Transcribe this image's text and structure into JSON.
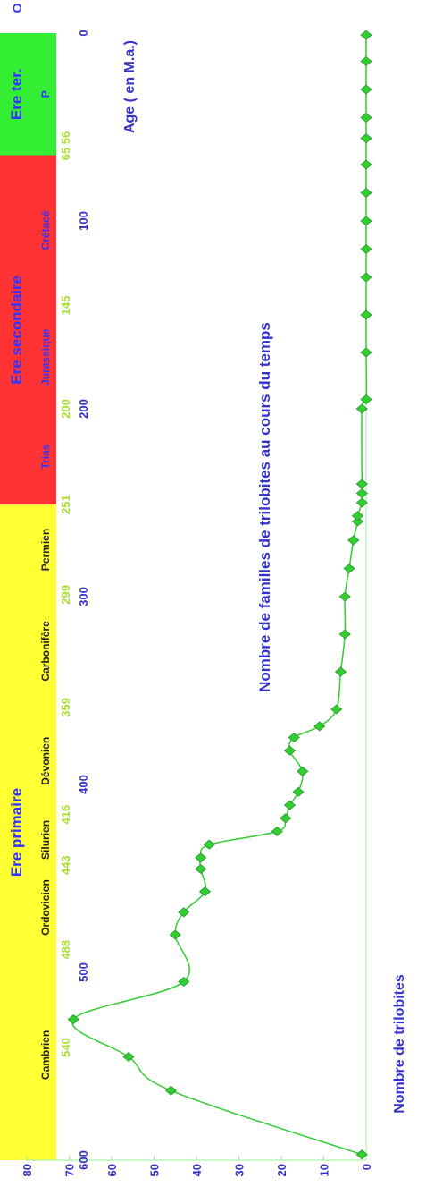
{
  "chart_data": {
    "type": "line",
    "title": "Nombre de familles de trilobites au cours du temps",
    "xlabel": "Age ( en M.a.)",
    "ylabel": "Nombre de trilobites",
    "xlim": [
      600,
      0
    ],
    "ylim": [
      0,
      80
    ],
    "grid": false,
    "x_ticks": [
      600,
      500,
      400,
      300,
      200,
      100,
      0
    ],
    "y_ticks": [
      0,
      10,
      20,
      30,
      40,
      50,
      60,
      70,
      80
    ],
    "boundary_labels": [
      "540",
      "488",
      "443",
      "416",
      "359",
      "299",
      "251",
      "200",
      "145",
      "65 56"
    ],
    "series": [
      {
        "color": "#33cc33",
        "x": [
          597,
          563,
          545,
          525,
          505,
          480,
          468,
          457,
          445,
          439,
          432,
          425,
          418,
          411,
          404,
          393,
          382,
          375,
          369,
          360,
          340,
          320,
          300,
          285,
          270,
          260,
          257,
          250,
          245,
          240,
          200,
          195,
          170,
          150,
          130,
          115,
          100,
          85,
          70,
          56,
          45,
          30,
          15,
          1
        ],
        "y": [
          1,
          46,
          56,
          69,
          43,
          45,
          43,
          38,
          39,
          39,
          37,
          21,
          19,
          18,
          16,
          15,
          18,
          17,
          11,
          7,
          6,
          5,
          5,
          4,
          3,
          2,
          2,
          1,
          1,
          1,
          1,
          0,
          0,
          0,
          0,
          0,
          0,
          0,
          0,
          0,
          0,
          0,
          0,
          0
        ]
      }
    ],
    "periods": [
      {
        "label": "Cambrien",
        "from": 600,
        "to": 488
      },
      {
        "label": "Ordovicien",
        "from": 488,
        "to": 443
      },
      {
        "label": "Silurien",
        "from": 443,
        "to": 416
      },
      {
        "label": "Dévonien",
        "from": 416,
        "to": 359
      },
      {
        "label": "Carbonifère",
        "from": 359,
        "to": 299
      },
      {
        "label": "Permien",
        "from": 299,
        "to": 251
      },
      {
        "label": "Trias",
        "from": 251,
        "to": 200
      },
      {
        "label": "Jurassique",
        "from": 200,
        "to": 145
      },
      {
        "label": "Crétacé",
        "from": 145,
        "to": 65
      },
      {
        "label": "P",
        "from": 65,
        "to": 0
      }
    ],
    "eras": [
      {
        "label": "Ere primaire",
        "from": 600,
        "to": 251,
        "color": "#ffff33"
      },
      {
        "label": "Ere secondaire",
        "from": 251,
        "to": 65,
        "color": "#ff3333"
      },
      {
        "label": "Ere ter.",
        "from": 65,
        "to": 0,
        "color": "#33ee33"
      }
    ],
    "end_label": "O"
  }
}
